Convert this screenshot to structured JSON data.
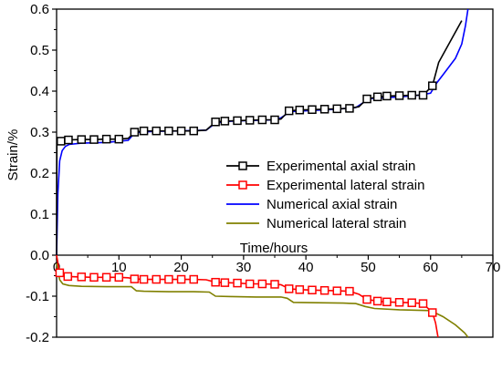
{
  "chart_data": {
    "type": "line",
    "xlabel": "Time/hours",
    "ylabel": "Strain/%",
    "xlim": [
      0,
      70
    ],
    "ylim": [
      -0.2,
      0.6
    ],
    "xticks": [
      0,
      10,
      20,
      30,
      40,
      50,
      60,
      70
    ],
    "xtick_labels": [
      "0",
      "10",
      "20",
      "30",
      "40",
      "50",
      "60",
      "70"
    ],
    "yticks": [
      -0.2,
      -0.1,
      0.0,
      0.1,
      0.2,
      0.3,
      0.4,
      0.5,
      0.6
    ],
    "ytick_labels": [
      "-0.2",
      "-0.1",
      "0.0",
      "0.1",
      "0.2",
      "0.3",
      "0.4",
      "0.5",
      "0.6"
    ],
    "grid": false,
    "legend_position": "right",
    "series": [
      {
        "name": "Experimental axial strain",
        "color": "#000000",
        "marker": "square",
        "x": [
          0,
          0.05,
          0.7,
          1.9,
          4,
          6,
          8,
          10,
          11.5,
          12.5,
          14,
          16,
          18,
          20,
          22,
          24,
          25.5,
          27,
          29,
          31,
          33,
          35,
          36,
          37.3,
          39,
          41,
          43,
          45,
          47,
          48.5,
          49.8,
          51.5,
          53,
          55,
          57,
          58.8,
          60.3,
          61.3,
          65
        ],
        "y": [
          0.0,
          0.27,
          0.278,
          0.281,
          0.282,
          0.282,
          0.283,
          0.283,
          0.285,
          0.3,
          0.303,
          0.303,
          0.303,
          0.303,
          0.303,
          0.305,
          0.325,
          0.327,
          0.328,
          0.329,
          0.33,
          0.33,
          0.332,
          0.352,
          0.354,
          0.355,
          0.356,
          0.357,
          0.358,
          0.362,
          0.381,
          0.386,
          0.388,
          0.389,
          0.39,
          0.39,
          0.413,
          0.47,
          0.572
        ],
        "marker_x": [
          0.7,
          1.9,
          4,
          6,
          8,
          10,
          12.5,
          14,
          16,
          18,
          20,
          22,
          25.5,
          27,
          29,
          31,
          33,
          35,
          37.3,
          39,
          41,
          43,
          45,
          47,
          49.8,
          51.5,
          53,
          55,
          57,
          58.8,
          60.3
        ]
      },
      {
        "name": "Experimental lateral strain",
        "color": "#ff0000",
        "marker": "square",
        "x": [
          0,
          0.5,
          1.8,
          4,
          6,
          8,
          10,
          11.5,
          12.5,
          14,
          16,
          18,
          20,
          22,
          24,
          25.5,
          27,
          29,
          31,
          33,
          35,
          36,
          37.3,
          39,
          41,
          43,
          45,
          47,
          48.5,
          49.8,
          51.5,
          53,
          55,
          57,
          58.8,
          60.3,
          60.8,
          61.2
        ],
        "y": [
          0.0,
          -0.043,
          -0.052,
          -0.053,
          -0.054,
          -0.054,
          -0.054,
          -0.055,
          -0.058,
          -0.059,
          -0.059,
          -0.059,
          -0.059,
          -0.059,
          -0.06,
          -0.066,
          -0.067,
          -0.068,
          -0.07,
          -0.07,
          -0.071,
          -0.072,
          -0.082,
          -0.084,
          -0.085,
          -0.086,
          -0.087,
          -0.088,
          -0.095,
          -0.108,
          -0.112,
          -0.114,
          -0.115,
          -0.116,
          -0.118,
          -0.14,
          -0.165,
          -0.2
        ],
        "marker_x": [
          0.5,
          1.8,
          4,
          6,
          8,
          10,
          12.5,
          14,
          16,
          18,
          20,
          22,
          25.5,
          27,
          29,
          31,
          33,
          35,
          37.3,
          39,
          41,
          43,
          45,
          47,
          49.8,
          51.5,
          53,
          55,
          57,
          58.8,
          60.3
        ]
      },
      {
        "name": "Numerical axial strain",
        "color": "#0000ff",
        "marker": "none",
        "x": [
          0,
          0.2,
          0.5,
          0.9,
          1.4,
          2,
          4,
          8,
          11.5,
          12.5,
          13.5,
          16,
          20,
          24,
          25.5,
          27,
          30,
          35,
          36,
          37.5,
          40,
          45,
          48,
          49.5,
          50.5,
          55,
          58,
          60,
          61,
          62,
          63,
          64,
          65,
          65.6,
          66
        ],
        "y": [
          0.0,
          0.15,
          0.23,
          0.255,
          0.265,
          0.27,
          0.273,
          0.275,
          0.28,
          0.298,
          0.3,
          0.302,
          0.303,
          0.305,
          0.322,
          0.326,
          0.328,
          0.33,
          0.335,
          0.35,
          0.352,
          0.356,
          0.36,
          0.375,
          0.382,
          0.386,
          0.39,
          0.395,
          0.42,
          0.44,
          0.46,
          0.48,
          0.515,
          0.56,
          0.6
        ]
      },
      {
        "name": "Numerical lateral strain",
        "color": "#808000",
        "marker": "none",
        "x": [
          0,
          0.5,
          1,
          2,
          4,
          8,
          12,
          12.8,
          14,
          18,
          22,
          24.5,
          25.5,
          28,
          32,
          36,
          37,
          38,
          42,
          46,
          48,
          49.5,
          51,
          55,
          60,
          62,
          64,
          65.5,
          66
        ],
        "y": [
          -0.02,
          -0.06,
          -0.07,
          -0.074,
          -0.076,
          -0.077,
          -0.077,
          -0.087,
          -0.088,
          -0.089,
          -0.089,
          -0.09,
          -0.1,
          -0.101,
          -0.102,
          -0.102,
          -0.105,
          -0.115,
          -0.116,
          -0.117,
          -0.118,
          -0.125,
          -0.13,
          -0.133,
          -0.135,
          -0.15,
          -0.17,
          -0.19,
          -0.2
        ]
      }
    ]
  }
}
